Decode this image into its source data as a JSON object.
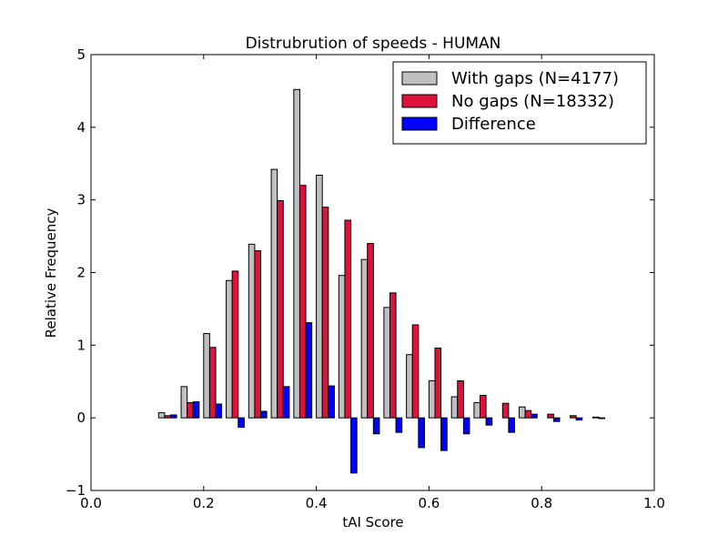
{
  "chart_data": {
    "type": "bar",
    "title": "Distrubrution of speeds - HUMAN",
    "xlabel": "tAI Score",
    "ylabel": "Relative Frequency",
    "xlim": [
      0.0,
      1.0
    ],
    "ylim": [
      -1,
      5
    ],
    "xticks": [
      "0.0",
      "0.2",
      "0.4",
      "0.6",
      "0.8",
      "1.0"
    ],
    "yticks": [
      "−1",
      "0",
      "1",
      "2",
      "3",
      "4",
      "5"
    ],
    "grid": false,
    "legend_position": "top-right",
    "bins": [
      0.0,
      0.04,
      0.08,
      0.12,
      0.16,
      0.2,
      0.24,
      0.28,
      0.32,
      0.36,
      0.4,
      0.44,
      0.48,
      0.52,
      0.56,
      0.6,
      0.64,
      0.68,
      0.72,
      0.76,
      0.8,
      0.84,
      0.88,
      0.92,
      0.96
    ],
    "series": [
      {
        "name": "With gaps (N=4177)",
        "color": "#bfbfbf",
        "values": [
          0,
          0,
          0,
          0.07,
          0.43,
          1.16,
          1.89,
          2.39,
          3.42,
          4.52,
          3.34,
          1.96,
          2.18,
          1.52,
          0.87,
          0.51,
          0.29,
          0.21,
          0,
          0.15,
          0,
          0,
          0,
          0,
          0
        ]
      },
      {
        "name": "No gaps (N=18332)",
        "color": "#dc143c",
        "values": [
          0,
          0,
          0,
          0.03,
          0.21,
          0.97,
          2.02,
          2.3,
          2.99,
          3.2,
          2.9,
          2.72,
          2.4,
          1.72,
          1.28,
          0.96,
          0.51,
          0.31,
          0.2,
          0.1,
          0.05,
          0.03,
          0.01,
          0,
          0
        ]
      },
      {
        "name": "Difference",
        "color": "#0000ff",
        "values": [
          0,
          0,
          0,
          0.04,
          0.22,
          0.19,
          -0.13,
          0.09,
          0.43,
          1.31,
          0.44,
          -0.76,
          -0.22,
          -0.2,
          -0.41,
          -0.45,
          -0.22,
          -0.1,
          -0.2,
          0.05,
          -0.05,
          -0.03,
          -0.01,
          0,
          0
        ]
      }
    ]
  }
}
